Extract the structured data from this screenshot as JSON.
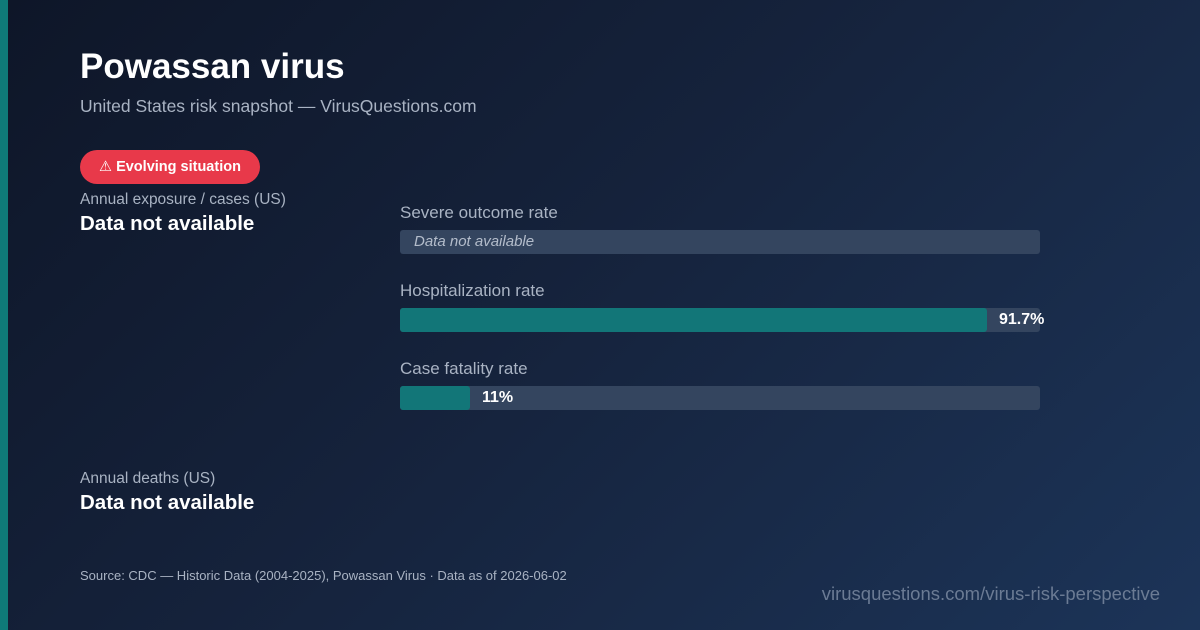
{
  "header": {
    "title": "Powassan virus",
    "subtitle": "United States risk snapshot — VirusQuestions.com"
  },
  "badge": {
    "icon": "warning-icon",
    "label": "⚠ Evolving situation",
    "color": "#e8394a"
  },
  "stats": {
    "exposure": {
      "label": "Annual exposure / cases (US)",
      "value": "Data not available"
    },
    "deaths": {
      "label": "Annual deaths (US)",
      "value": "Data not available"
    }
  },
  "metrics": {
    "severe": {
      "label": "Severe outcome rate",
      "value_text": "Data not available"
    },
    "hospitalization": {
      "label": "Hospitalization rate",
      "value": 91.7,
      "value_text": "91.7%"
    },
    "fatality": {
      "label": "Case fatality rate",
      "value": 11,
      "value_text": "11%"
    }
  },
  "footer": {
    "source": "Source: CDC — Historic Data (2004-2025), Powassan Virus · Data as of 2026-06-02",
    "url": "virusquestions.com/virus-risk-perspective"
  },
  "colors": {
    "accent": "#0f7a78",
    "bar_fill": "#127678",
    "bar_track": "#34455f",
    "alert": "#e8394a"
  }
}
